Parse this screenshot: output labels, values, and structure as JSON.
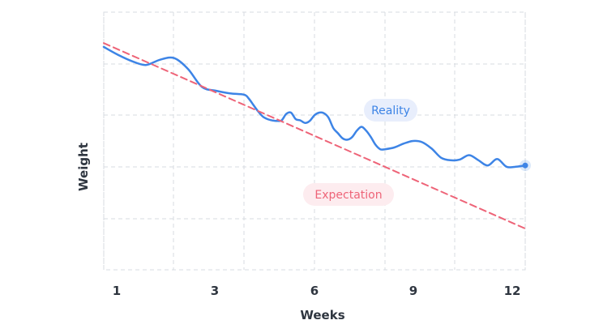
{
  "chart_data": {
    "type": "line",
    "xlabel": "Weeks",
    "ylabel": "Weight",
    "x_ticks": [
      "1",
      "3",
      "6",
      "9",
      "12"
    ],
    "x_tick_values": [
      1,
      3,
      6,
      9,
      12
    ],
    "xlim": [
      1,
      12
    ],
    "ylim": [
      0,
      100
    ],
    "grid": true,
    "y_tick_labels_shown": false,
    "series": [
      {
        "name": "Reality",
        "color": "#3d84e6",
        "end_marker": true,
        "x": [
          1.0,
          1.2,
          1.4,
          1.6,
          1.8,
          2.0,
          2.2,
          2.4,
          2.6,
          2.8,
          3.0,
          3.2,
          3.4,
          3.6,
          3.8,
          4.0,
          4.2,
          4.4,
          4.6,
          4.8,
          5.0,
          5.2,
          5.4,
          5.6,
          5.8,
          6.0,
          6.2,
          6.4,
          6.6,
          6.8,
          7.0,
          7.2,
          7.4,
          7.6,
          7.8,
          8.0,
          8.2,
          8.4,
          8.6,
          8.8,
          9.0,
          9.2,
          9.4,
          9.6,
          9.8,
          10.0,
          10.2,
          10.4,
          10.6,
          10.8,
          11.0,
          11.2,
          11.4,
          11.6,
          11.8,
          12.0
        ],
        "y": [
          86.5,
          83.5,
          81.0,
          79.5,
          81.5,
          82.2,
          78.0,
          71.0,
          69.5,
          68.5,
          68.0,
          66.5,
          64.0,
          61.5,
          59.5,
          58.5,
          58.0,
          57.8,
          58.0,
          60.5,
          61.0,
          58.5,
          58.0,
          57.0,
          57.8,
          60.0,
          61.0,
          60.8,
          59.0,
          55.0,
          53.0,
          51.0,
          50.5,
          51.5,
          54.0,
          55.5,
          54.0,
          51.5,
          48.5,
          46.8,
          46.8,
          47.5,
          49.0,
          50.0,
          49.5,
          47.0,
          43.5,
          42.5,
          42.8,
          44.5,
          42.5,
          40.5,
          43.0,
          40.0,
          40.0,
          40.5
        ]
      },
      {
        "name": "Expectation",
        "color": "#ee6478",
        "dashed": true,
        "x": [
          1,
          12
        ],
        "y": [
          88,
          16
        ]
      }
    ]
  }
}
